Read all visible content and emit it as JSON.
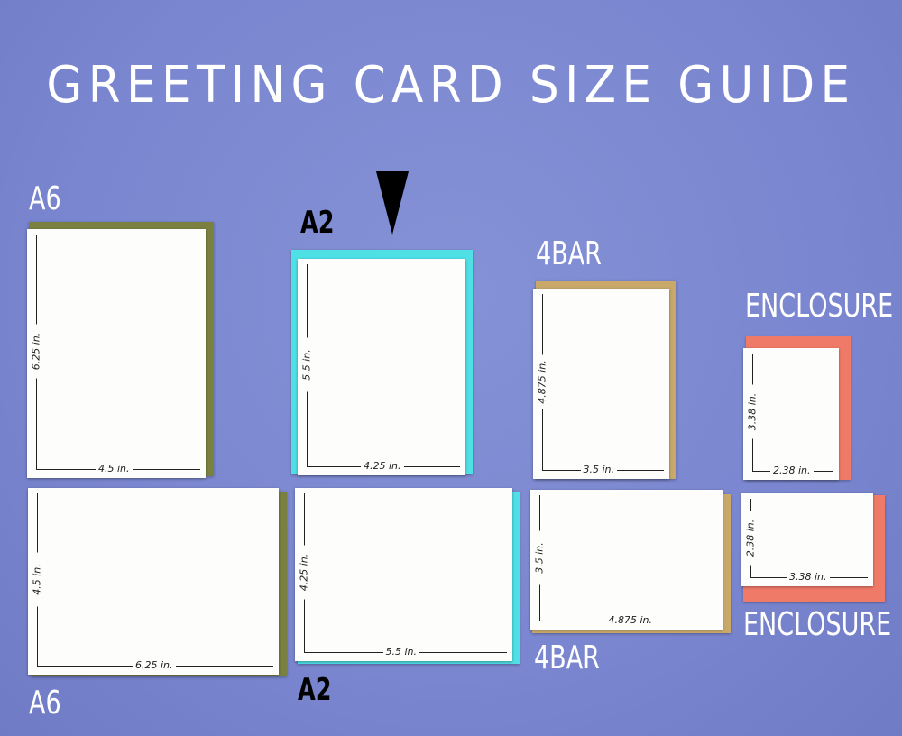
{
  "title": "GREETING CARD SIZE GUIDE",
  "colors": {
    "background": "#7a86cf",
    "A6": "#7a8040",
    "A2": "#4fe0e6",
    "4BAR": "#c9a86a",
    "ENCLOSURE": "#f07a68",
    "card": "#fdfdfb"
  },
  "marker_icon": "down-triangle",
  "labels": {
    "a6_top": "A6",
    "a2_top": "A2",
    "bar4_top": "4BAR",
    "enclosure_top": "ENCLOSURE",
    "a6_bottom": "A6",
    "a2_bottom": "A2",
    "bar4_bottom": "4BAR",
    "enclosure_bottom": "ENCLOSURE"
  },
  "cards": [
    {
      "size": "A6",
      "orientation": "portrait",
      "height_label": "6.25 in.",
      "width_label": "4.5 in."
    },
    {
      "size": "A2",
      "orientation": "portrait",
      "height_label": "5.5 in.",
      "width_label": "4.25 in."
    },
    {
      "size": "4BAR",
      "orientation": "portrait",
      "height_label": "4.875 in.",
      "width_label": "3.5 in."
    },
    {
      "size": "ENCLOSURE",
      "orientation": "portrait",
      "height_label": "3.38 in.",
      "width_label": "2.38 in."
    },
    {
      "size": "A6",
      "orientation": "landscape",
      "height_label": "4.5 in.",
      "width_label": "6.25 in."
    },
    {
      "size": "A2",
      "orientation": "landscape",
      "height_label": "4.25 in.",
      "width_label": "5.5 in."
    },
    {
      "size": "4BAR",
      "orientation": "landscape",
      "height_label": "3.5 in.",
      "width_label": "4.875 in."
    },
    {
      "size": "ENCLOSURE",
      "orientation": "landscape",
      "height_label": "2.38 in.",
      "width_label": "3.38 in."
    }
  ]
}
